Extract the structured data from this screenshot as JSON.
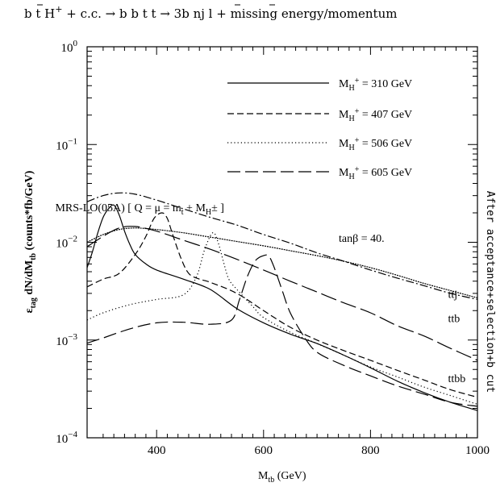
{
  "chart_data": {
    "type": "line",
    "title": "b t H⁺ + c.c. → b b t t → 3b nj l + missing energy/momentum",
    "title_prefix": "b t H",
    "title_plus": "+",
    "title_suffix": " + c.c. → b b t t → 3b nj l + missing energy/momentum",
    "xlabel": "M",
    "xlabel_sub": "tb",
    "xlabel_unit": " (GeV)",
    "ylabel": "εtag dN/dMtb (counts*fb/GeV)",
    "ylabel_eps": "ε",
    "ylabel_eps_sub": "tag",
    "ylabel_mid": " dN/dM",
    "ylabel_mid_sub": "tb",
    "ylabel_unit": " (counts*fb/GeV)",
    "right_label": "After acceptance+selection+b cut",
    "xlim": [
      270,
      1000
    ],
    "ylim": [
      0.0001,
      1
    ],
    "yscale": "log",
    "x_ticks": [
      400,
      600,
      800,
      1000
    ],
    "x_tick_labels": [
      "400",
      "600",
      "800",
      "1000"
    ],
    "y_ticks": [
      {
        "value": 0.0001,
        "base": "10",
        "exp": "−4"
      },
      {
        "value": 0.001,
        "base": "10",
        "exp": "−3"
      },
      {
        "value": 0.01,
        "base": "10",
        "exp": "−2"
      },
      {
        "value": 0.1,
        "base": "10",
        "exp": "−1"
      },
      {
        "value": 1,
        "base": "10",
        "exp": "0"
      }
    ],
    "legend_position": "top-right",
    "legend_sub": "H",
    "legend_sup": "+",
    "series": [
      {
        "name": "M_H+ = 310 GeV",
        "legend_value": " = 310 GeV",
        "dash": "solid",
        "x": [
          270,
          280,
          290,
          300,
          310,
          320,
          330,
          340,
          350,
          360,
          380,
          400,
          450,
          500,
          550,
          600,
          650,
          700,
          750,
          800,
          850,
          900,
          950,
          1000
        ],
        "y": [
          0.0055,
          0.008,
          0.0125,
          0.018,
          0.022,
          0.024,
          0.019,
          0.013,
          0.0095,
          0.0075,
          0.006,
          0.0052,
          0.0042,
          0.0033,
          0.0021,
          0.0015,
          0.00115,
          0.00092,
          0.0007,
          0.00052,
          0.00038,
          0.00029,
          0.00023,
          0.00019
        ]
      },
      {
        "name": "M_H+ = 407 GeV",
        "legend_value": " = 407 GeV",
        "dash": "8 4",
        "x": [
          270,
          300,
          330,
          360,
          380,
          395,
          410,
          420,
          430,
          445,
          460,
          480,
          500,
          550,
          600,
          650,
          700,
          750,
          800,
          850,
          900,
          950,
          1000
        ],
        "y": [
          0.0035,
          0.0042,
          0.0048,
          0.0075,
          0.0115,
          0.0175,
          0.02,
          0.0175,
          0.012,
          0.007,
          0.0048,
          0.0042,
          0.0039,
          0.003,
          0.002,
          0.00135,
          0.001,
          0.00078,
          0.00062,
          0.00049,
          0.00039,
          0.00031,
          0.00026
        ]
      },
      {
        "name": "M_H+ = 506 GeV",
        "legend_value": " = 506 GeV",
        "dash": "1.2 3",
        "x": [
          270,
          300,
          350,
          400,
          450,
          475,
          490,
          505,
          515,
          525,
          535,
          550,
          580,
          600,
          650,
          700,
          750,
          800,
          850,
          900,
          950,
          1000
        ],
        "y": [
          0.0016,
          0.0019,
          0.0023,
          0.0026,
          0.0029,
          0.0045,
          0.0085,
          0.0125,
          0.01,
          0.0063,
          0.0042,
          0.0033,
          0.0022,
          0.0017,
          0.0012,
          0.00092,
          0.0007,
          0.00053,
          0.00042,
          0.00033,
          0.00027,
          0.00022
        ]
      },
      {
        "name": "M_H+ = 605 GeV",
        "legend_value": " = 605 GeV",
        "dash": "16 6",
        "x": [
          270,
          300,
          350,
          400,
          450,
          500,
          540,
          555,
          570,
          585,
          600,
          610,
          620,
          635,
          650,
          675,
          700,
          750,
          800,
          850,
          900,
          950,
          1000
        ],
        "y": [
          0.00093,
          0.00105,
          0.0013,
          0.0015,
          0.00152,
          0.00145,
          0.0016,
          0.0026,
          0.0045,
          0.0065,
          0.0073,
          0.0072,
          0.0055,
          0.0032,
          0.0019,
          0.0011,
          0.00075,
          0.00055,
          0.00043,
          0.00034,
          0.00028,
          0.00023,
          0.00021
        ]
      },
      {
        "name": "ttj",
        "dash": "10 3 2 3",
        "x": [
          270,
          300,
          330,
          360,
          400,
          450,
          500,
          550,
          600,
          650,
          700,
          750,
          800,
          850,
          900,
          950,
          1000
        ],
        "y": [
          0.026,
          0.03,
          0.032,
          0.031,
          0.027,
          0.022,
          0.018,
          0.015,
          0.012,
          0.0098,
          0.0078,
          0.0064,
          0.0052,
          0.0043,
          0.0036,
          0.003,
          0.0026
        ]
      },
      {
        "name": "ttb",
        "dash": "20 6",
        "x": [
          270,
          300,
          330,
          360,
          400,
          450,
          500,
          550,
          600,
          650,
          700,
          750,
          800,
          850,
          900,
          950,
          1000
        ],
        "y": [
          0.009,
          0.0115,
          0.014,
          0.0145,
          0.013,
          0.0105,
          0.0085,
          0.0067,
          0.0052,
          0.004,
          0.0031,
          0.0024,
          0.0019,
          0.0014,
          0.0011,
          0.00082,
          0.00062
        ]
      },
      {
        "name": "ttbb",
        "dash": "2 1",
        "weight": 2.2,
        "x": [
          270,
          300,
          330,
          360,
          400,
          450,
          500,
          550,
          600,
          650,
          700,
          750,
          800,
          850,
          900,
          950,
          1000
        ],
        "y": [
          0.01,
          0.012,
          0.0135,
          0.014,
          0.0135,
          0.0125,
          0.0113,
          0.0102,
          0.0092,
          0.0082,
          0.0073,
          0.0064,
          0.0055,
          0.0046,
          0.0038,
          0.0032,
          0.0027
        ]
      }
    ],
    "curve_labels": [
      {
        "text": "ttj",
        "x": 945,
        "y": 0.0027
      },
      {
        "text": "ttb",
        "x": 945,
        "y": 0.00153
      },
      {
        "text": "ttbb",
        "x": 945,
        "y": 0.00037
      }
    ],
    "annotations": [
      {
        "text": "MRS-LO(05A) [ Q = μ = m",
        "sub": "t",
        "rest": " + M",
        "sub2": "H",
        "rest2": "± ]",
        "x": 595,
        "y": 0.016
      },
      {
        "text": "tanβ = 40.",
        "x": 695,
        "y": 0.0055
      }
    ]
  }
}
